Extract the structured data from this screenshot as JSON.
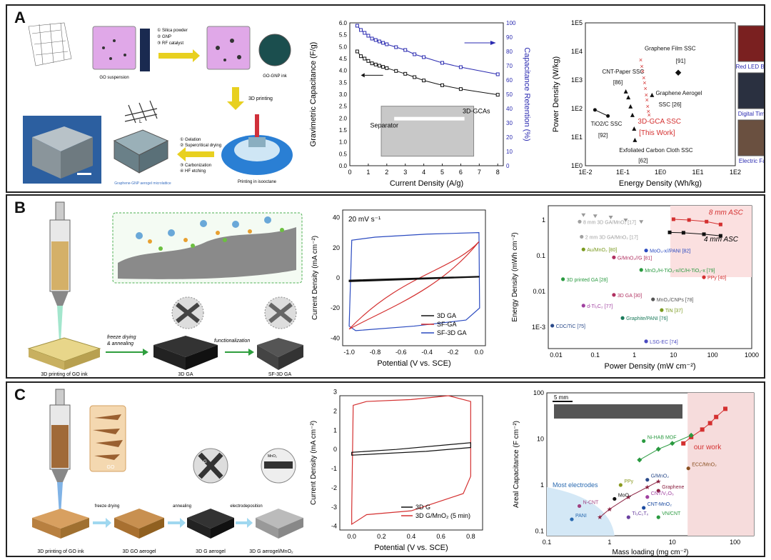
{
  "panels": {
    "a": {
      "label": "A",
      "flow": {
        "steps": [
          "① Silica powder",
          "② GNP",
          "③ RF catalyst"
        ],
        "suspension": "GO suspension",
        "ink": "GO-GNP ink",
        "printing": "3D printing",
        "printing_in": "Printing in isooctane",
        "post": [
          "① Gelation",
          "② Supercritical drying",
          "③ Carbonization",
          "④ HF etching"
        ],
        "micro": "Graphene-GNP aerogel microlattice",
        "dim_L": "L"
      },
      "chart": {
        "xlabel": "Current Density (A/g)",
        "ylabel": "Gravimetric Capacitance (F/g)",
        "y2label": "Capacitance Retention (%)",
        "xticks": [
          "0",
          "1",
          "2",
          "3",
          "4",
          "5",
          "6",
          "7",
          "8"
        ],
        "yticks": [
          "0.0",
          "0.5",
          "1.0",
          "1.5",
          "2.0",
          "2.5",
          "3.0",
          "3.5",
          "4.0",
          "4.5",
          "5.0",
          "5.5",
          "6.0"
        ],
        "y2ticks": [
          "0",
          "10",
          "20",
          "30",
          "40",
          "50",
          "60",
          "70",
          "80",
          "90",
          "100"
        ],
        "inset_top": "3D-GCAs",
        "inset_sep": "Separator"
      },
      "ragone": {
        "xlabel": "Energy Density (Wh/kg)",
        "ylabel": "Power Density (W/kg)",
        "xticks": [
          "1E-2",
          "1E-1",
          "1E0",
          "1E1",
          "1E2"
        ],
        "yticks": [
          "1E0",
          "1E1",
          "1E2",
          "1E3",
          "1E4",
          "1E5"
        ],
        "labels": {
          "film": "Graphene Film SSC",
          "film_ref": "[91]",
          "cnt": "CNT-Paper SSC",
          "cnt_ref": "[86]",
          "aerogel": "Graphene Aerogel",
          "aerogel_ref": "SSC [26]",
          "tio2": "TiO2/C SSC",
          "tio2_ref": "[92]",
          "gca": "3D-GCA SSC",
          "gca_ref": "[This Work]",
          "cloth": "Exfoliated Carbon Cloth SSC",
          "cloth_ref": "[62]"
        },
        "photos": [
          "Red LED Bulb",
          "Digital Timer",
          "Electric Fan"
        ]
      }
    },
    "b": {
      "label": "B",
      "flow": {
        "print": "3D printing of GO ink",
        "freeze": "freeze drying",
        "anneal": "& annealing",
        "ga": "3D GA",
        "func": "functionalization",
        "sfga": "SF-3D GA"
      },
      "cv": {
        "xlabel": "Potential (V vs. SCE)",
        "ylabel": "Current Density (mA cm⁻²)",
        "rate": "20 mV s⁻¹",
        "xticks": [
          "-1.0",
          "-0.8",
          "-0.6",
          "-0.4",
          "-0.2",
          "0.0"
        ],
        "yticks": [
          "-40",
          "-20",
          "0",
          "20",
          "40"
        ],
        "legend": [
          "3D GA",
          "SF-GA",
          "SF-3D GA"
        ]
      },
      "ragone": {
        "xlabel": "Power Density (mW cm⁻²)",
        "ylabel": "Energy Density (mWh cm⁻²)",
        "xticks": [
          "0.01",
          "0.1",
          "1",
          "10",
          "100",
          "1000"
        ],
        "yticks": [
          "1E-3",
          "0.01",
          "0.1",
          "1"
        ],
        "labels": [
          "8 mm 3D GA/MnO₂ [17]",
          "2 mm 3D GA/MnO₂ [17]",
          "Au/MnO₂ [80]",
          "G/MnO₂//G [81]",
          "MoO₃-x//PANI [82]",
          "MnO₂/H-TiO₂-x//C/H-TiO₂-x [79]",
          "3D printed GA [28]",
          "3D GA [30]",
          "PPy [40]",
          "d-Ti₃C₂ [77]",
          "MnO₂/CNPs [78]",
          "TiN [37]",
          "Graphite/PANI [76]",
          "CDC/TiC [75]",
          "LSG-EC [74]"
        ],
        "asc8": "8 mm ASC",
        "asc4": "4 mm ASC"
      }
    },
    "c": {
      "label": "C",
      "flow": {
        "print": "3D printing of GO ink",
        "freeze": "freeze drying",
        "anneal": "annealing",
        "electro": "electrodeposition",
        "go_aerogel": "3D GO aerogel",
        "g_aerogel": "3D G aerogel",
        "mno2_aerogel": "3D G aerogel/MnO₂",
        "go": "GO",
        "g": "G",
        "mno2": "MnO₂"
      },
      "cv": {
        "xlabel": "Potential (V vs. SCE)",
        "ylabel": "Current Density (mA cm⁻²)",
        "xticks": [
          "0.0",
          "0.2",
          "0.4",
          "0.6",
          "0.8"
        ],
        "yticks": [
          "-4",
          "-3",
          "-2",
          "-1",
          "0",
          "1",
          "2",
          "3"
        ],
        "legend": [
          "3D G",
          "3D G/MnO₂ (5 min)"
        ]
      },
      "areal": {
        "xlabel": "Mass loading (mg cm⁻²)",
        "ylabel": "Areal Capacitance (F cm⁻²)",
        "xticks": [
          "0.1",
          "1",
          "10",
          "100"
        ],
        "yticks": [
          "0.1",
          "1",
          "10",
          "100"
        ],
        "scale": "5 mm",
        "most": "Most electrodes",
        "ours": "our work",
        "labels": [
          "Ni-HAB MOF",
          "ECC/MnO₂",
          "G/MnO₂",
          "PPy",
          "Graphene",
          "CNT/V₂O₅",
          "MoO₃",
          "CNT-MnO₂",
          "N-CNT",
          "PANI",
          "Ti₃C₂Tₓ",
          "VN/CNT"
        ]
      }
    }
  }
}
